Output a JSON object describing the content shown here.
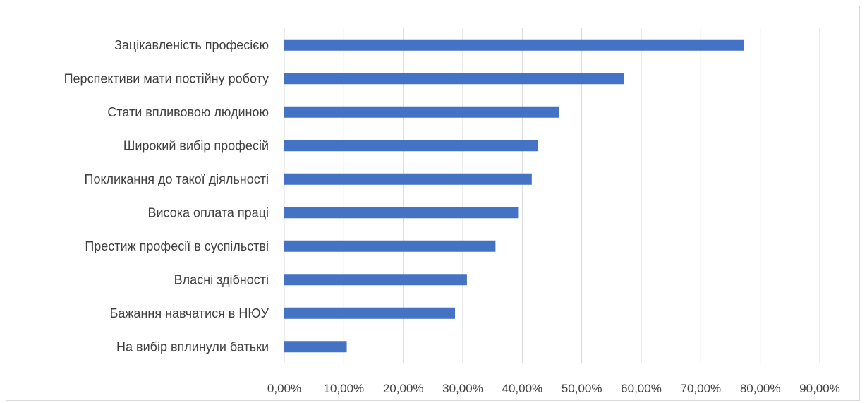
{
  "chart_data": {
    "type": "bar",
    "orientation": "horizontal",
    "categories": [
      "Зацікавленість професією",
      "Перспективи мати постійну роботу",
      "Стати впливовою людиною",
      "Широкий вибір професій",
      "Покликання до такої діяльності",
      "Висока оплата праці",
      "Престиж професії в суспільстві",
      "Власні здібності",
      "Бажання навчатися в НЮУ",
      "На вибір вплинули батьки"
    ],
    "values": [
      77.2,
      57.1,
      46.2,
      42.6,
      41.6,
      39.3,
      35.5,
      30.7,
      28.7,
      10.5
    ],
    "xlim": [
      0,
      90
    ],
    "xticks": [
      "0,00%",
      "10,00%",
      "20,00%",
      "30,00%",
      "40,00%",
      "50,00%",
      "60,00%",
      "70,00%",
      "80,00%",
      "90,00%"
    ],
    "grid": true,
    "bar_color": "#4472C4",
    "grid_color": "#d9d9d9",
    "title": "",
    "xlabel": "",
    "ylabel": ""
  }
}
